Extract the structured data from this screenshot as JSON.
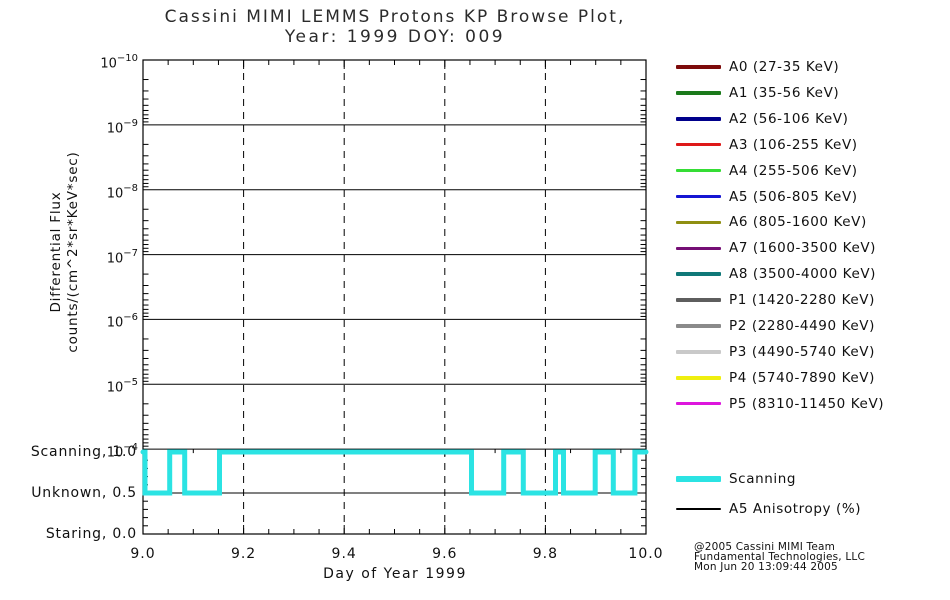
{
  "title": {
    "line1": "Cassini MIMI LEMMS Protons KP Browse Plot,",
    "line2": "Year: 1999 DOY: 009"
  },
  "axes": {
    "y_title_line1": "Differential Flux",
    "y_title_line2": "counts/(cm^2*sr*KeV*sec)",
    "x_title": "Day of Year 1999",
    "x_tick_labels": [
      "9.0",
      "9.2",
      "9.4",
      "9.6",
      "9.8",
      "10.0"
    ],
    "mode_labels": [
      {
        "label": "Scanning, 1.0",
        "value": 1.0
      },
      {
        "label": "Unknown, 0.5",
        "value": 0.5
      },
      {
        "label": "Staring, 0.0",
        "value": 0.0
      }
    ]
  },
  "legend": {
    "flux_entries": [
      {
        "label": "A0 (27-35 KeV)",
        "color": "#7d0b0b"
      },
      {
        "label": "A1 (35-56 KeV)",
        "color": "#1b7a1b"
      },
      {
        "label": "A2 (56-106 KeV)",
        "color": "#00008b"
      },
      {
        "label": "A3 (106-255 KeV)",
        "color": "#de1818"
      },
      {
        "label": "A4 (255-506 KeV)",
        "color": "#35dd35"
      },
      {
        "label": "A5 (506-805 KeV)",
        "color": "#1515d3"
      },
      {
        "label": "A6 (805-1600 KeV)",
        "color": "#8f8f12"
      },
      {
        "label": "A7 (1600-3500 KeV)",
        "color": "#750f75"
      },
      {
        "label": "A8 (3500-4000 KeV)",
        "color": "#0f7878"
      },
      {
        "label": "P1 (1420-2280 KeV)",
        "color": "#5e5e5e"
      },
      {
        "label": "P2 (2280-4490 KeV)",
        "color": "#8a8a8a"
      },
      {
        "label": "P3 (4490-5740 KeV)",
        "color": "#c9c9c9"
      },
      {
        "label": "P4 (5740-7890 KeV)",
        "color": "#efef0f"
      },
      {
        "label": "P5 (8310-11450 KeV)",
        "color": "#dd16dd"
      }
    ],
    "mode_entries": [
      {
        "label": "Scanning",
        "color": "#2be3e3",
        "thick": true
      },
      {
        "label": "A5 Anisotropy (%)",
        "color": "#000000",
        "thick": false
      }
    ]
  },
  "footer": {
    "line1": "@2005 Cassini MIMI Team",
    "line2": "Fundamental Technologies, LLC",
    "line3": "Mon Jun 20 13:09:44 2005"
  },
  "chart_data": {
    "type": "line",
    "title": "Cassini MIMI LEMMS Protons KP Browse Plot, Year: 1999 DOY: 009",
    "xlabel": "Day of Year 1999",
    "ylabel": "Differential Flux counts/(cm^2*sr*KeV*sec)",
    "x_range": [
      9.0,
      10.0
    ],
    "x_tick_values": [
      9.0,
      9.2,
      9.4,
      9.6,
      9.8,
      10.0
    ],
    "x_minor_step": 0.05,
    "x_gridlines_dashed": [
      9.2,
      9.4,
      9.6,
      9.8
    ],
    "flux_axis": {
      "scale": "log",
      "tick_exponents": [
        -10,
        -9,
        -8,
        -7,
        -6,
        -5,
        -4
      ],
      "orientation": "values increase downward",
      "flux_series_plotted": "none visible (empty panel)"
    },
    "mode_axis": {
      "range": [
        0.0,
        1.0
      ],
      "minor_step": 0.1,
      "levels": [
        {
          "name": "Scanning",
          "value": 1.0
        },
        {
          "name": "Unknown",
          "value": 0.5
        },
        {
          "name": "Staring",
          "value": 0.0
        }
      ]
    },
    "series": [
      {
        "name": "Scanning",
        "color": "#2be3e3",
        "points": [
          [
            9.0,
            1.0
          ],
          [
            9.004,
            1.0
          ],
          [
            9.004,
            0.5
          ],
          [
            9.053,
            0.5
          ],
          [
            9.053,
            1.0
          ],
          [
            9.083,
            1.0
          ],
          [
            9.083,
            0.5
          ],
          [
            9.152,
            0.5
          ],
          [
            9.152,
            1.0
          ],
          [
            9.653,
            1.0
          ],
          [
            9.653,
            0.5
          ],
          [
            9.717,
            0.5
          ],
          [
            9.717,
            1.0
          ],
          [
            9.756,
            1.0
          ],
          [
            9.756,
            0.5
          ],
          [
            9.82,
            0.5
          ],
          [
            9.82,
            1.0
          ],
          [
            9.836,
            1.0
          ],
          [
            9.836,
            0.5
          ],
          [
            9.899,
            0.5
          ],
          [
            9.899,
            1.0
          ],
          [
            9.935,
            1.0
          ],
          [
            9.935,
            0.5
          ],
          [
            9.978,
            0.5
          ],
          [
            9.978,
            1.0
          ],
          [
            10.0,
            1.0
          ]
        ]
      }
    ],
    "legend_position": "right"
  }
}
